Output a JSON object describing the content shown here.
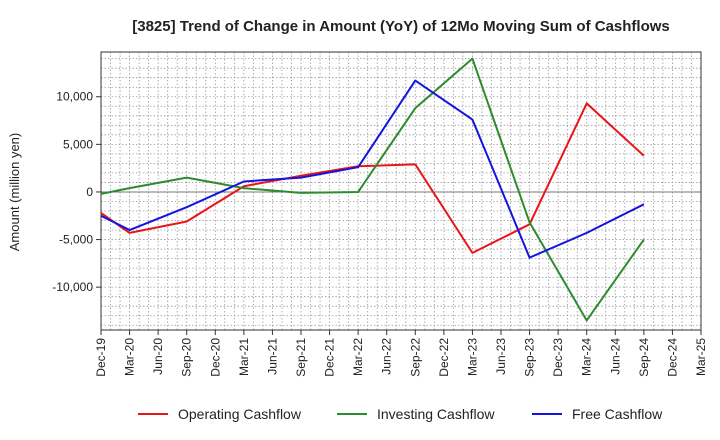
{
  "chart_data": {
    "type": "line",
    "title": "[3825]  Trend of Change in Amount (YoY) of 12Mo Moving Sum of Cashflows",
    "xlabel": "",
    "ylabel": "Amount (million yen)",
    "ylim": [
      -14500,
      14700
    ],
    "yticks": [
      -10000,
      -5000,
      0,
      5000,
      10000
    ],
    "ytick_labels": [
      "-10,000",
      "-5,000",
      "0",
      "5,000",
      "10,000"
    ],
    "categories": [
      "Dec-19",
      "Mar-20",
      "Jun-20",
      "Sep-20",
      "Dec-20",
      "Mar-21",
      "Jun-21",
      "Sep-21",
      "Dec-21",
      "Mar-22",
      "Jun-22",
      "Sep-22",
      "Dec-22",
      "Mar-23",
      "Jun-23",
      "Sep-23",
      "Dec-23",
      "Mar-24",
      "Jun-24",
      "Sep-24",
      "Dec-24",
      "Mar-25"
    ],
    "grid": true,
    "legend_position": "bottom",
    "series": [
      {
        "name": "Operating Cashflow",
        "color": "#e8161b",
        "values": [
          -2200,
          -4300,
          null,
          -3100,
          null,
          600,
          null,
          1700,
          null,
          2700,
          null,
          2900,
          null,
          -6400,
          null,
          -3400,
          null,
          9300,
          null,
          3800,
          null,
          null
        ]
      },
      {
        "name": "Investing Cashflow",
        "color": "#2e8b2e",
        "values": [
          -200,
          400,
          null,
          1500,
          null,
          400,
          null,
          -100,
          null,
          0,
          null,
          8800,
          null,
          14000,
          null,
          -3200,
          null,
          -13500,
          null,
          -5000,
          null,
          null
        ]
      },
      {
        "name": "Free Cashflow",
        "color": "#1414e0",
        "values": [
          -2500,
          -4000,
          null,
          -1600,
          null,
          1100,
          null,
          1500,
          null,
          2600,
          null,
          11700,
          null,
          7600,
          null,
          -6900,
          null,
          -4300,
          null,
          -1300,
          null,
          null
        ]
      }
    ]
  }
}
